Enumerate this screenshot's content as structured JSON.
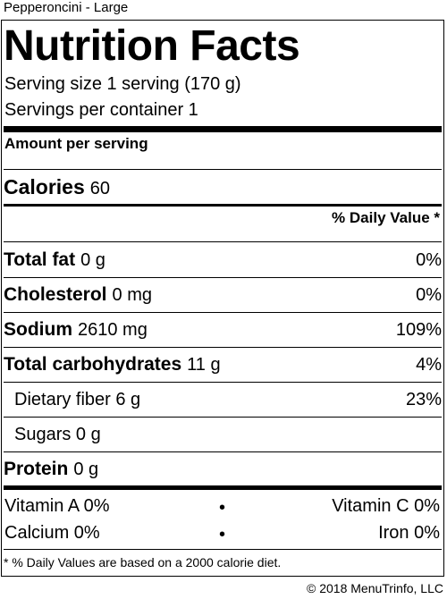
{
  "product_name": "Pepperoncini - Large",
  "title": "Nutrition Facts",
  "serving_size": "Serving size 1 serving (170 g)",
  "servings_per_container": "Servings per container 1",
  "amount_per_serving": "Amount per serving",
  "calories": {
    "label": "Calories",
    "value": "60"
  },
  "daily_value_header": "% Daily Value *",
  "nutrients": [
    {
      "name": "Total fat",
      "amount": "0 g",
      "dv": "0%"
    },
    {
      "name": "Cholesterol",
      "amount": "0 mg",
      "dv": "0%"
    },
    {
      "name": "Sodium",
      "amount": "2610 mg",
      "dv": "109%"
    },
    {
      "name": "Total carbohydrates",
      "amount": "11 g",
      "dv": "4%"
    },
    {
      "name": "Dietary fiber 6 g",
      "amount": "",
      "dv": "23%"
    },
    {
      "name": "Sugars 0 g",
      "amount": "",
      "dv": ""
    },
    {
      "name": "Protein",
      "amount": "0 g",
      "dv": ""
    }
  ],
  "vitamins": {
    "vitamin_a": "Vitamin A 0%",
    "vitamin_c": "Vitamin C 0%",
    "calcium": "Calcium 0%",
    "iron": "Iron 0%",
    "bullet": "•"
  },
  "footnote": "* % Daily Values are based on a 2000 calorie diet.",
  "copyright": "© 2018 MenuTrinfo, LLC"
}
